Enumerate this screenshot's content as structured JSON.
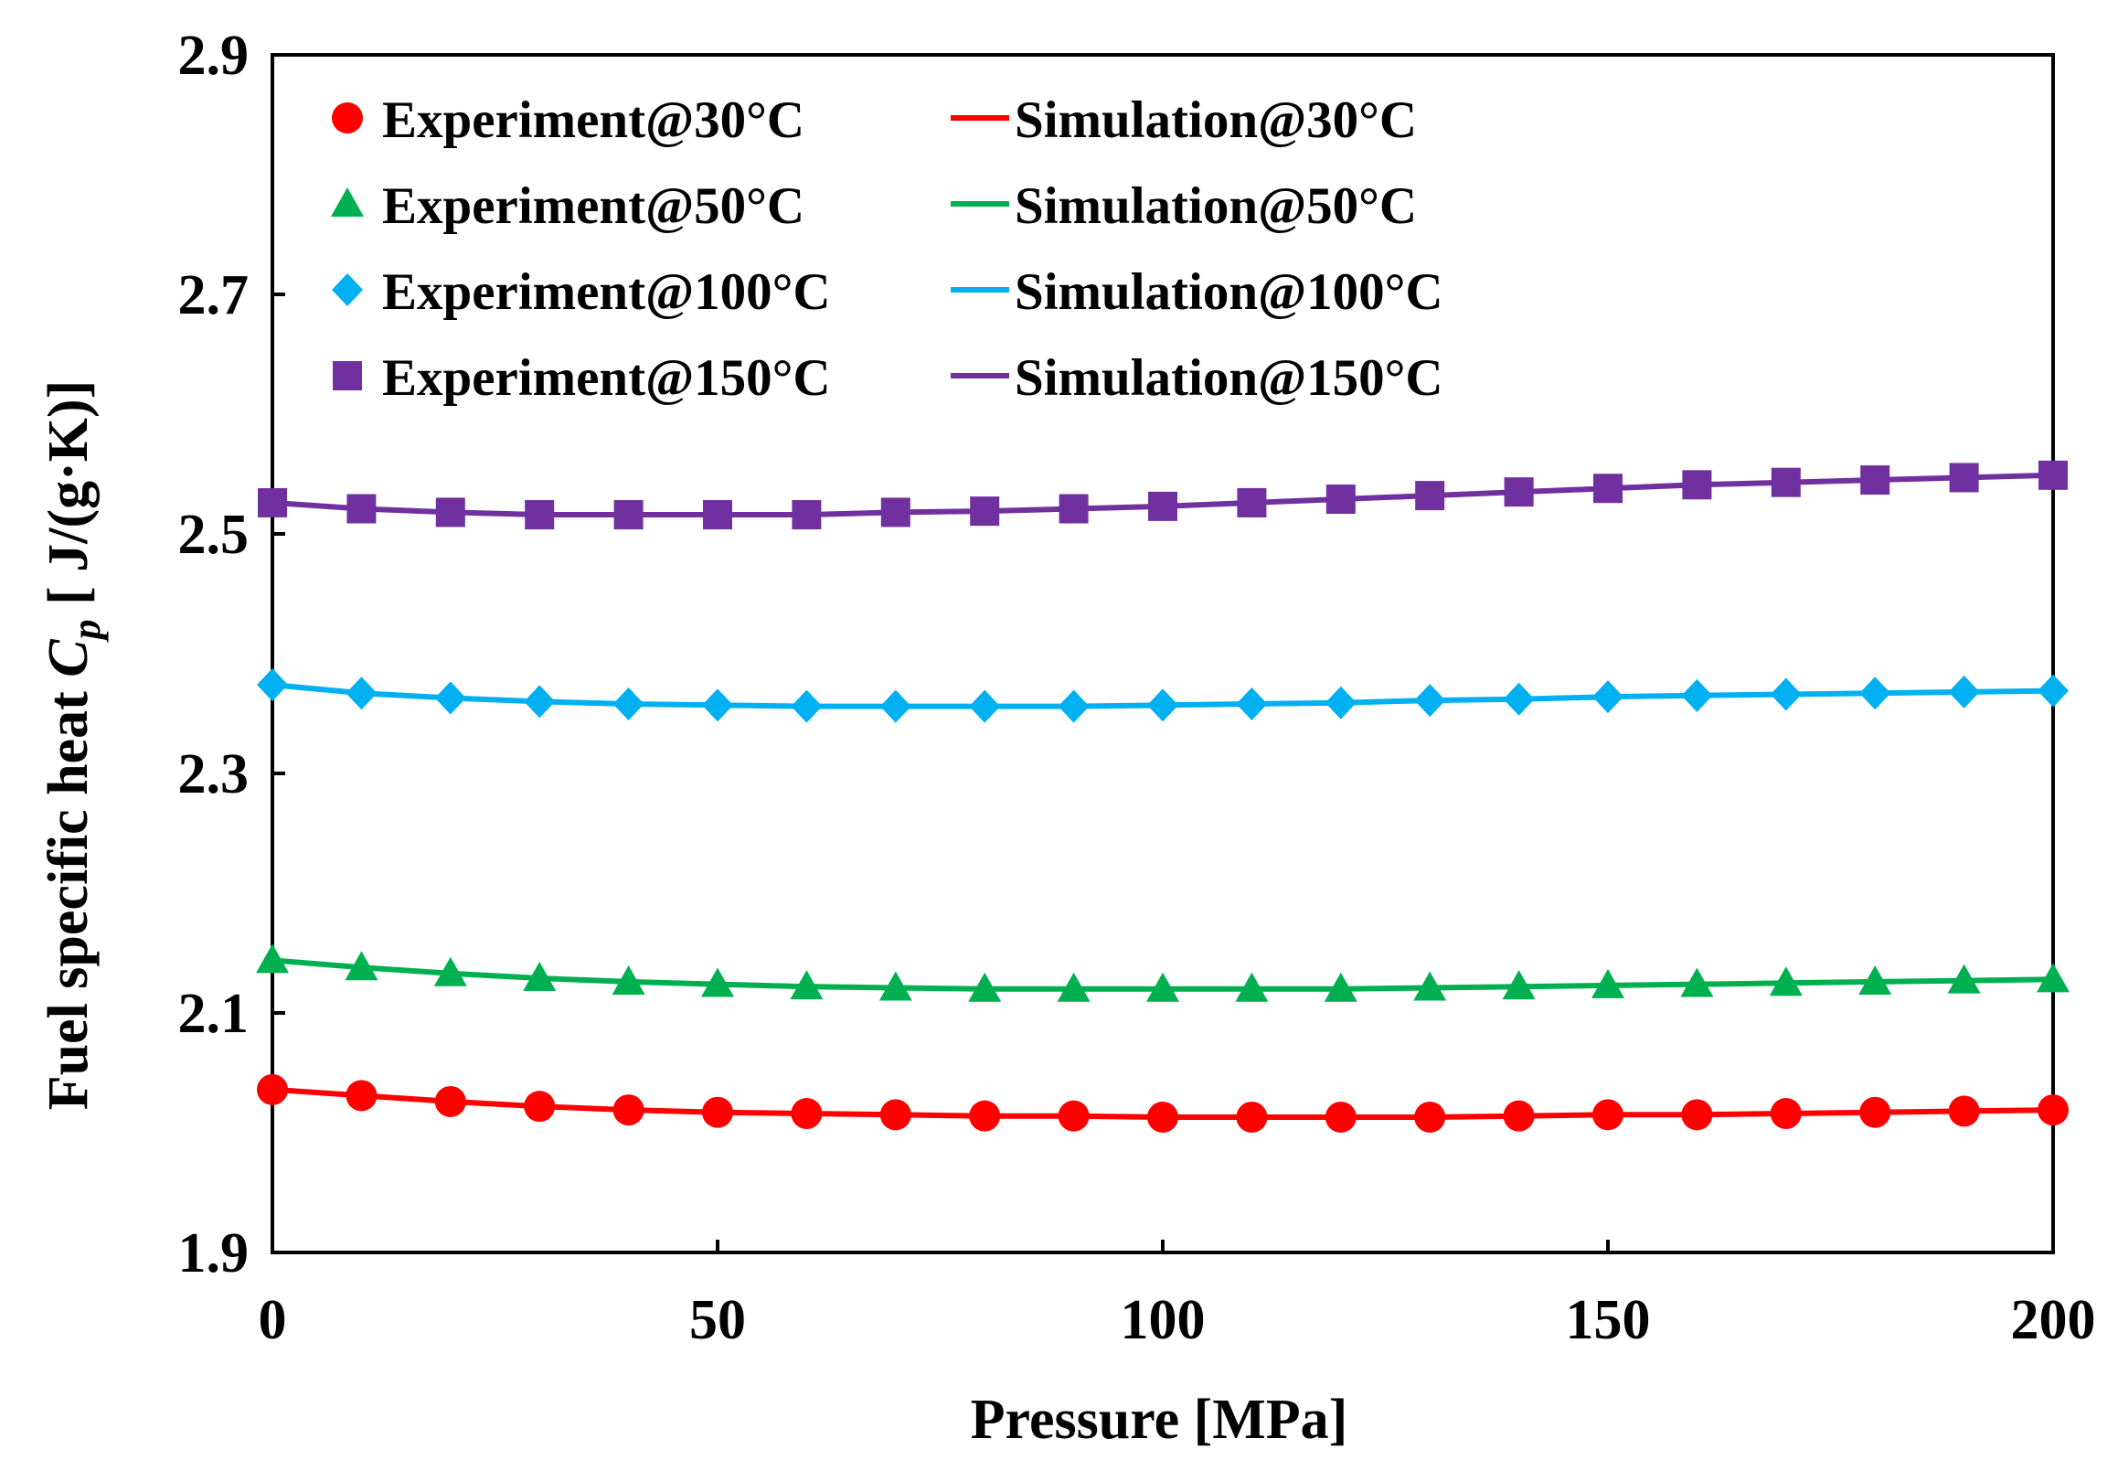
{
  "chart_data": {
    "type": "line",
    "xlabel": "Pressure [MPa]",
    "ylabel_parts": {
      "prefix": "Fuel specific heat ",
      "symbol": "C",
      "subscript": "p",
      "unit": " [ J/(g·K)]"
    },
    "xlim": [
      0,
      200
    ],
    "ylim": [
      1.9,
      2.9
    ],
    "x_ticks": [
      0,
      50,
      100,
      150,
      200
    ],
    "x_tick_labels": [
      "0",
      "50",
      "100",
      "150",
      "200"
    ],
    "y_ticks": [
      1.9,
      2.1,
      2.3,
      2.5,
      2.7,
      2.9
    ],
    "y_tick_labels": [
      "1.9",
      "2.1",
      "2.3",
      "2.5",
      "2.7",
      "2.9"
    ],
    "grid": false,
    "legend_position": "top-left",
    "x": [
      0,
      10,
      20,
      30,
      40,
      50,
      60,
      70,
      80,
      90,
      100,
      110,
      120,
      130,
      140,
      150,
      160,
      170,
      180,
      190,
      200
    ],
    "series": [
      {
        "temperature": "30°C",
        "experiment_label": "Experiment@30°C",
        "simulation_label": "Simulation@30°C",
        "color": "#ff0000",
        "marker": "circle",
        "experiment": [
          2.036,
          2.031,
          2.026,
          2.022,
          2.019,
          2.017,
          2.016,
          2.015,
          2.014,
          2.014,
          2.013,
          2.013,
          2.013,
          2.013,
          2.014,
          2.015,
          2.015,
          2.016,
          2.017,
          2.018,
          2.019
        ],
        "simulation": [
          2.036,
          2.031,
          2.026,
          2.022,
          2.019,
          2.017,
          2.016,
          2.015,
          2.014,
          2.014,
          2.013,
          2.013,
          2.013,
          2.013,
          2.014,
          2.015,
          2.015,
          2.016,
          2.017,
          2.018,
          2.019
        ]
      },
      {
        "temperature": "50°C",
        "experiment_label": "Experiment@50°C",
        "simulation_label": "Simulation@50°C",
        "color": "#00b050",
        "marker": "triangle",
        "experiment": [
          2.144,
          2.138,
          2.133,
          2.129,
          2.126,
          2.124,
          2.122,
          2.121,
          2.12,
          2.12,
          2.12,
          2.12,
          2.12,
          2.121,
          2.122,
          2.123,
          2.124,
          2.125,
          2.126,
          2.127,
          2.128
        ],
        "simulation": [
          2.144,
          2.138,
          2.133,
          2.129,
          2.126,
          2.124,
          2.122,
          2.121,
          2.12,
          2.12,
          2.12,
          2.12,
          2.12,
          2.121,
          2.122,
          2.123,
          2.124,
          2.125,
          2.126,
          2.127,
          2.128
        ]
      },
      {
        "temperature": "100°C",
        "experiment_label": "Experiment@100°C",
        "simulation_label": "Simulation@100°C",
        "color": "#00b0f0",
        "marker": "diamond",
        "experiment": [
          2.374,
          2.367,
          2.363,
          2.36,
          2.358,
          2.357,
          2.356,
          2.356,
          2.356,
          2.356,
          2.357,
          2.358,
          2.359,
          2.361,
          2.362,
          2.364,
          2.365,
          2.366,
          2.367,
          2.368,
          2.369
        ],
        "simulation": [
          2.374,
          2.367,
          2.363,
          2.36,
          2.358,
          2.357,
          2.356,
          2.356,
          2.356,
          2.356,
          2.357,
          2.358,
          2.359,
          2.361,
          2.362,
          2.364,
          2.365,
          2.366,
          2.367,
          2.368,
          2.369
        ]
      },
      {
        "temperature": "150°C",
        "experiment_label": "Experiment@150°C",
        "simulation_label": "Simulation@150°C",
        "color": "#7030a0",
        "marker": "square",
        "experiment": [
          2.526,
          2.521,
          2.518,
          2.516,
          2.516,
          2.516,
          2.516,
          2.518,
          2.519,
          2.521,
          2.523,
          2.526,
          2.529,
          2.532,
          2.535,
          2.538,
          2.541,
          2.543,
          2.545,
          2.547,
          2.549
        ],
        "simulation": [
          2.526,
          2.521,
          2.518,
          2.516,
          2.516,
          2.516,
          2.516,
          2.518,
          2.519,
          2.521,
          2.523,
          2.526,
          2.529,
          2.532,
          2.535,
          2.538,
          2.541,
          2.543,
          2.545,
          2.547,
          2.549
        ]
      }
    ]
  }
}
